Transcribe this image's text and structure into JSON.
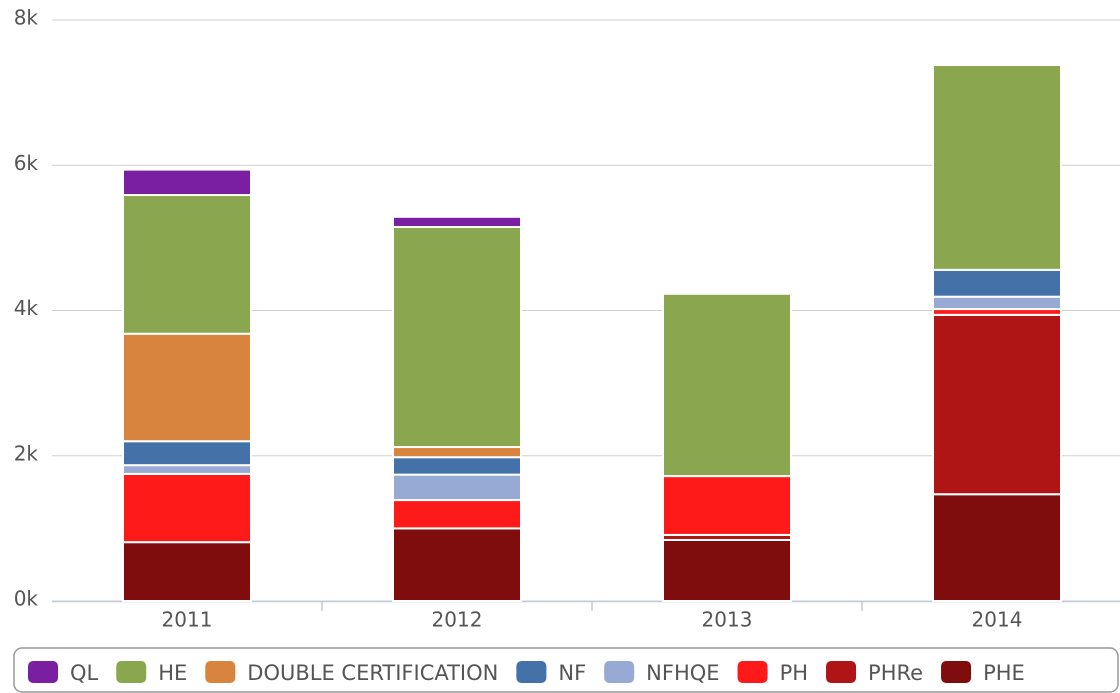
{
  "chart_data": {
    "type": "bar",
    "stacked": true,
    "categories": [
      "2011",
      "2012",
      "2013",
      "2014"
    ],
    "series": [
      {
        "name": "QL",
        "color": "#7a1fa2",
        "values": [
          350,
          140,
          0,
          0
        ]
      },
      {
        "name": "HE",
        "color": "#8aa64e",
        "values": [
          1910,
          3030,
          2510,
          2820
        ]
      },
      {
        "name": "DOUBLE CERTIFICATION",
        "color": "#d9843e",
        "values": [
          1480,
          140,
          0,
          0
        ]
      },
      {
        "name": "NF",
        "color": "#4472a8",
        "values": [
          330,
          240,
          0,
          370
        ]
      },
      {
        "name": "NFHQE",
        "color": "#96aad3",
        "values": [
          120,
          350,
          0,
          170
        ]
      },
      {
        "name": "PH",
        "color": "#ff1a1a",
        "values": [
          940,
          390,
          810,
          80
        ]
      },
      {
        "name": "PHRe",
        "color": "#b01515",
        "values": [
          0,
          0,
          70,
          2470
        ]
      },
      {
        "name": "PHE",
        "color": "#7f0d0d",
        "values": [
          810,
          1000,
          840,
          1470
        ]
      }
    ],
    "ylim": [
      0,
      8000
    ],
    "yticks": [
      {
        "value": 0,
        "label": "0k"
      },
      {
        "value": 2000,
        "label": "2k"
      },
      {
        "value": 4000,
        "label": "4k"
      },
      {
        "value": 6000,
        "label": "6k"
      },
      {
        "value": 8000,
        "label": "8k"
      }
    ],
    "grid": true,
    "legend": "bottom"
  }
}
